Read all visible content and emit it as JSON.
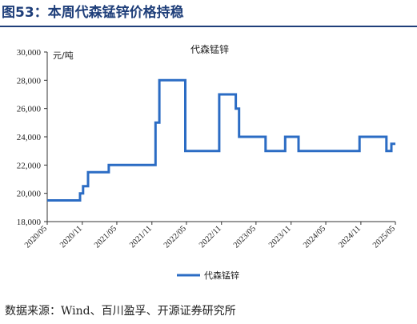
{
  "figure_title": "图53：本周代森锰锌价格持稳",
  "source": "数据来源：Wind、百川盈孚、开源证券研究所",
  "chart_data": {
    "type": "line",
    "title": "代森锰锌",
    "unit": "元/吨",
    "ylim": [
      18000,
      30000
    ],
    "yticks": [
      18000,
      20000,
      22000,
      24000,
      26000,
      28000,
      30000
    ],
    "ytick_labels": [
      "18,000",
      "20,000",
      "22,000",
      "24,000",
      "26,000",
      "28,000",
      "30,000"
    ],
    "xlim": [
      "2020-05",
      "2025-05"
    ],
    "xtick_labels": [
      "2020/05",
      "2020/11",
      "2021/05",
      "2021/11",
      "2022/05",
      "2022/11",
      "2023/05",
      "2023/11",
      "2024/05",
      "2024/11",
      "2025/05"
    ],
    "legend": "bottom-center",
    "grid": false,
    "series": [
      {
        "name": "代森锰锌",
        "color": "#2b6cc4",
        "x": [
          "2020-05-01",
          "2020-10-20",
          "2020-10-20",
          "2020-11-05",
          "2020-11-05",
          "2020-12-01",
          "2020-12-01",
          "2021-03-20",
          "2021-03-20",
          "2021-11-20",
          "2021-11-20",
          "2021-12-10",
          "2021-12-10",
          "2022-04-25",
          "2022-04-25",
          "2022-10-20",
          "2022-10-20",
          "2023-01-15",
          "2023-01-15",
          "2023-02-01",
          "2023-02-01",
          "2023-06-20",
          "2023-06-20",
          "2023-10-01",
          "2023-10-01",
          "2023-12-10",
          "2023-12-10",
          "2024-10-25",
          "2024-10-25",
          "2025-03-15",
          "2025-03-15",
          "2025-04-10",
          "2025-04-10",
          "2025-05-01"
        ],
        "y": [
          19500,
          19500,
          20000,
          20000,
          20500,
          20500,
          21500,
          21500,
          22000,
          22000,
          25000,
          25000,
          28000,
          28000,
          23000,
          23000,
          27000,
          27000,
          26000,
          26000,
          24000,
          24000,
          23000,
          23000,
          24000,
          24000,
          23000,
          23000,
          24000,
          24000,
          23000,
          23000,
          23500,
          23500
        ]
      }
    ]
  }
}
